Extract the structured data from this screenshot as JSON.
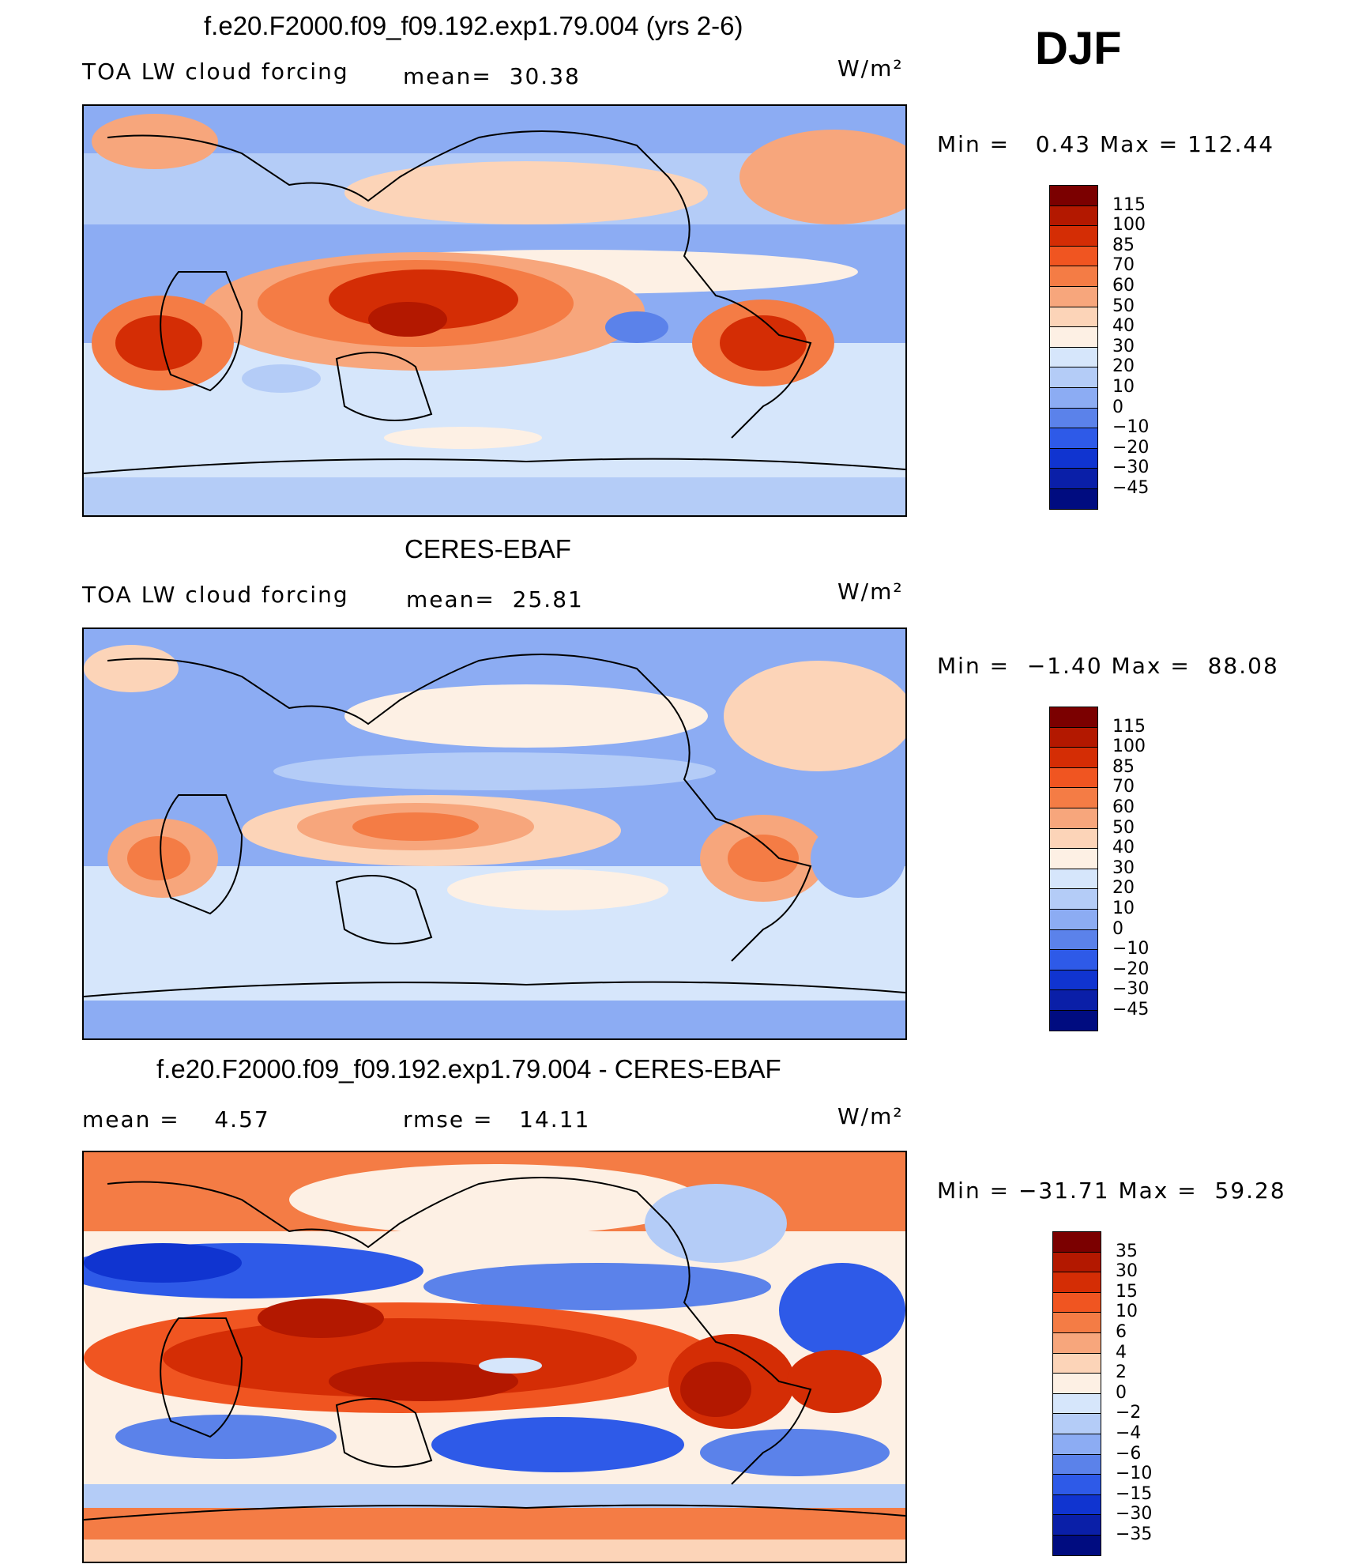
{
  "season": "DJF",
  "unit_label": "W/m²",
  "panels": [
    {
      "title": "f.e20.F2000.f09_f09.192.exp1.79.004 (yrs 2-6)",
      "left_label": "TOA LW cloud forcing",
      "mid_label": "mean=  30.38",
      "minmax": "Min =   0.43 Max = 112.44"
    },
    {
      "title": "CERES-EBAF",
      "left_label": "TOA LW cloud forcing",
      "mid_label": "mean=  25.81",
      "minmax": "Min =  −1.40 Max =  88.08"
    },
    {
      "title": "f.e20.F2000.f09_f09.192.exp1.79.004 - CERES-EBAF",
      "left_label": "mean =    4.57",
      "mid_label": "rmse =   14.11",
      "minmax": "Min = −31.71 Max =  59.28"
    }
  ],
  "chart_data": [
    {
      "type": "heatmap",
      "title": "f.e20.F2000.f09_f09.192.exp1.79.004 (yrs 2-6)",
      "variable": "TOA LW cloud forcing",
      "units": "W/m²",
      "mean": 30.38,
      "min": 0.43,
      "max": 112.44,
      "colorbar_levels": [
        "115",
        "100",
        "85",
        "70",
        "60",
        "50",
        "40",
        "30",
        "20",
        "10",
        "0",
        "−10",
        "−20",
        "−30",
        "−45"
      ],
      "colorbar_colors": [
        "#7b0000",
        "#b31800",
        "#d42d05",
        "#f05521",
        "#f47c45",
        "#f7a67c",
        "#fcd4b8",
        "#fdf0e4",
        "#d6e6fb",
        "#b4ccf7",
        "#8cacf3",
        "#5b82ea",
        "#2e5ae8",
        "#1034d0",
        "#0a1fa8",
        "#000c80"
      ]
    },
    {
      "type": "heatmap",
      "title": "CERES-EBAF",
      "variable": "TOA LW cloud forcing",
      "units": "W/m²",
      "mean": 25.81,
      "min": -1.4,
      "max": 88.08,
      "colorbar_levels": [
        "115",
        "100",
        "85",
        "70",
        "60",
        "50",
        "40",
        "30",
        "20",
        "10",
        "0",
        "−10",
        "−20",
        "−30",
        "−45"
      ],
      "colorbar_colors": [
        "#7b0000",
        "#b31800",
        "#d42d05",
        "#f05521",
        "#f47c45",
        "#f7a67c",
        "#fcd4b8",
        "#fdf0e4",
        "#d6e6fb",
        "#b4ccf7",
        "#8cacf3",
        "#5b82ea",
        "#2e5ae8",
        "#1034d0",
        "#0a1fa8",
        "#000c80"
      ]
    },
    {
      "type": "heatmap",
      "title": "f.e20.F2000.f09_f09.192.exp1.79.004 - CERES-EBAF",
      "units": "W/m²",
      "mean": 4.57,
      "rmse": 14.11,
      "min": -31.71,
      "max": 59.28,
      "colorbar_levels": [
        "35",
        "30",
        "15",
        "10",
        "6",
        "4",
        "2",
        "0",
        "−2",
        "−4",
        "−6",
        "−10",
        "−15",
        "−30",
        "−35"
      ],
      "colorbar_colors": [
        "#7b0000",
        "#b31800",
        "#d42d05",
        "#f05521",
        "#f47c45",
        "#f7a67c",
        "#fcd4b8",
        "#fdf0e4",
        "#d6e6fb",
        "#b4ccf7",
        "#8cacf3",
        "#5b82ea",
        "#2e5ae8",
        "#1034d0",
        "#0a1fa8",
        "#000c80"
      ]
    }
  ]
}
